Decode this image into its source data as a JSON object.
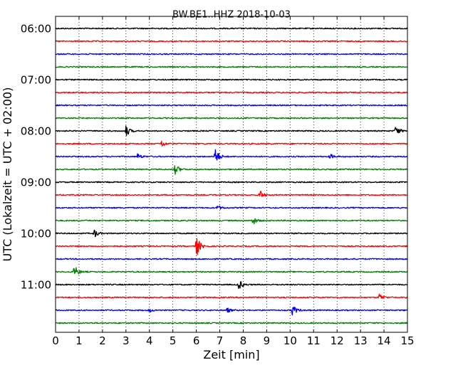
{
  "chart_data": {
    "type": "line",
    "subtype": "helicorder",
    "title": "BW.BE1..HHZ 2018-10-03",
    "xlabel": "Zeit  [min]",
    "ylabel": "UTC (Lokalzeit = UTC + 02:00)",
    "xlim": [
      0,
      15
    ],
    "x_ticks": [
      0,
      1,
      2,
      3,
      4,
      5,
      6,
      7,
      8,
      9,
      10,
      11,
      12,
      13,
      14,
      15
    ],
    "x_tick_labels": [
      "0",
      "1",
      "2",
      "3",
      "4",
      "5",
      "6",
      "7",
      "8",
      "9",
      "10",
      "11",
      "12",
      "13",
      "14",
      "15"
    ],
    "y_tick_labels": [
      "06:00",
      "07:00",
      "08:00",
      "09:00",
      "10:00",
      "11:00"
    ],
    "grid": "vertical dotted",
    "minutes_per_trace": 15,
    "trace_colors": [
      "#000000",
      "#ff0000",
      "#0000ff",
      "#008000"
    ],
    "traces": [
      {
        "start": "06:00",
        "color": "#000000",
        "events": []
      },
      {
        "start": "06:15",
        "color": "#ff0000",
        "events": []
      },
      {
        "start": "06:30",
        "color": "#0000ff",
        "events": []
      },
      {
        "start": "06:45",
        "color": "#008000",
        "events": []
      },
      {
        "start": "07:00",
        "color": "#000000",
        "events": []
      },
      {
        "start": "07:15",
        "color": "#ff0000",
        "events": []
      },
      {
        "start": "07:30",
        "color": "#0000ff",
        "events": []
      },
      {
        "start": "07:45",
        "color": "#008000",
        "events": []
      },
      {
        "start": "08:00",
        "color": "#000000",
        "events": [
          {
            "x": 3.0,
            "amp": 0.45
          },
          {
            "x": 14.5,
            "amp": 0.45
          }
        ]
      },
      {
        "start": "08:15",
        "color": "#ff0000",
        "events": [
          {
            "x": 4.5,
            "amp": 0.3
          }
        ]
      },
      {
        "start": "08:30",
        "color": "#0000ff",
        "events": [
          {
            "x": 3.5,
            "amp": 0.25
          },
          {
            "x": 6.8,
            "amp": 0.75
          },
          {
            "x": 11.7,
            "amp": 0.2
          }
        ]
      },
      {
        "start": "08:45",
        "color": "#008000",
        "events": [
          {
            "x": 5.1,
            "amp": 0.45
          }
        ]
      },
      {
        "start": "09:00",
        "color": "#000000",
        "events": []
      },
      {
        "start": "09:15",
        "color": "#ff0000",
        "events": [
          {
            "x": 8.7,
            "amp": 0.4
          }
        ]
      },
      {
        "start": "09:30",
        "color": "#0000ff",
        "events": [
          {
            "x": 6.9,
            "amp": 0.2
          }
        ]
      },
      {
        "start": "09:45",
        "color": "#008000",
        "events": [
          {
            "x": 8.4,
            "amp": 0.35
          }
        ]
      },
      {
        "start": "10:00",
        "color": "#000000",
        "events": [
          {
            "x": 1.65,
            "amp": 0.35
          }
        ]
      },
      {
        "start": "10:15",
        "color": "#ff0000",
        "events": [
          {
            "x": 6.0,
            "amp": 0.9
          }
        ]
      },
      {
        "start": "10:30",
        "color": "#0000ff",
        "events": []
      },
      {
        "start": "10:45",
        "color": "#008000",
        "events": [
          {
            "x": 0.8,
            "amp": 0.55
          }
        ]
      },
      {
        "start": "11:00",
        "color": "#000000",
        "events": [
          {
            "x": 7.8,
            "amp": 0.45
          }
        ]
      },
      {
        "start": "11:15",
        "color": "#ff0000",
        "events": [
          {
            "x": 13.8,
            "amp": 0.3
          }
        ]
      },
      {
        "start": "11:30",
        "color": "#0000ff",
        "events": [
          {
            "x": 4.0,
            "amp": 0.15
          },
          {
            "x": 7.3,
            "amp": 0.2
          },
          {
            "x": 10.1,
            "amp": 0.45
          }
        ]
      },
      {
        "start": "11:45",
        "color": "#008000",
        "events": []
      }
    ]
  }
}
